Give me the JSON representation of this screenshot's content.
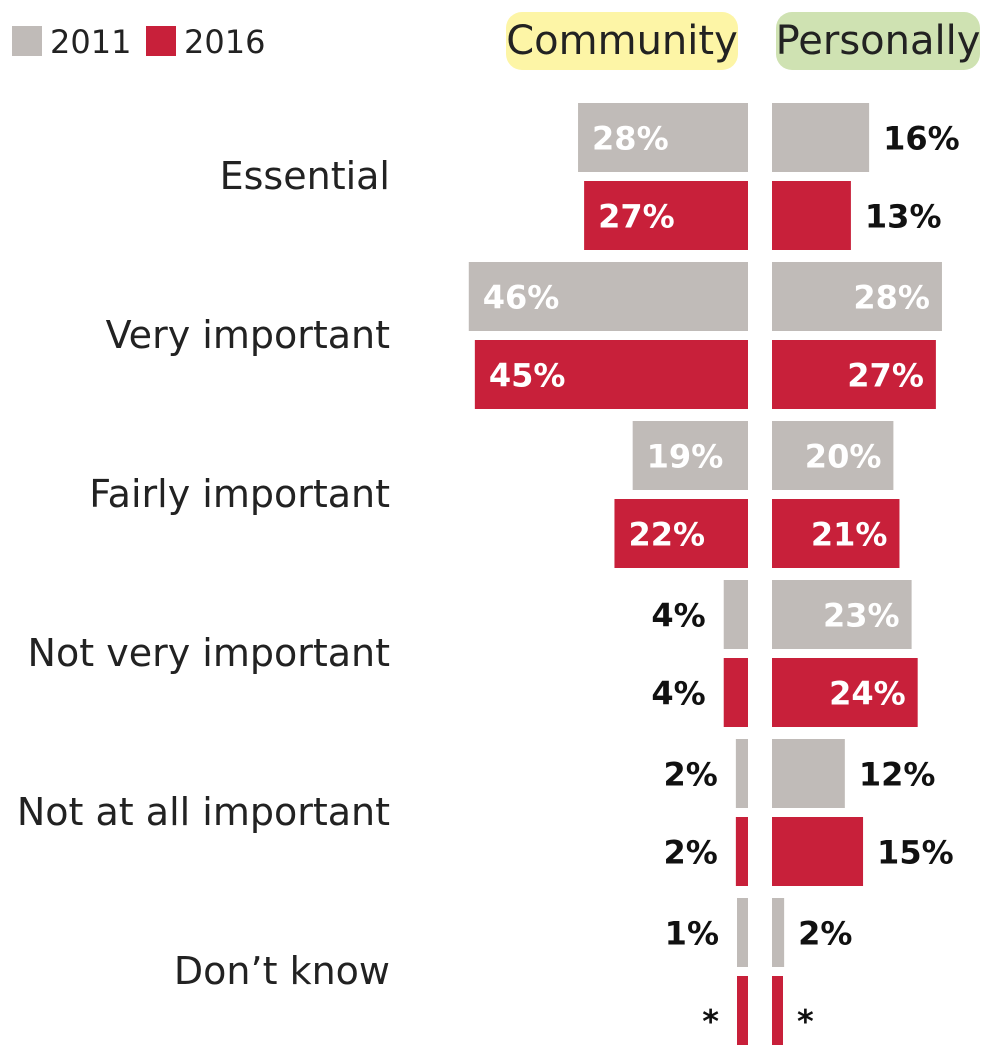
{
  "chart_data": {
    "type": "bar",
    "orientation": "horizontal",
    "layout": "back-to-back",
    "legend": [
      {
        "name": "2011",
        "color": "#c0bbb8"
      },
      {
        "name": "2016",
        "color": "#c8203a"
      }
    ],
    "panels": [
      {
        "title": "Community",
        "highlight": "#fdf5a6"
      },
      {
        "title": "Personally",
        "highlight": "#cfe2b2"
      }
    ],
    "categories": [
      "Essential",
      "Very important",
      "Fairly important",
      "Not very important",
      "Not at all important",
      "Don’t know"
    ],
    "series": [
      {
        "name": "2011",
        "community": [
          28,
          46,
          19,
          4,
          2,
          1
        ],
        "community_labels": [
          "28%",
          "46%",
          "19%",
          "4%",
          "2%",
          "1%"
        ],
        "personally": [
          16,
          28,
          20,
          23,
          12,
          2
        ],
        "personally_labels": [
          "16%",
          "28%",
          "20%",
          "23%",
          "12%",
          "2%"
        ]
      },
      {
        "name": "2016",
        "community": [
          27,
          45,
          22,
          4,
          2,
          0.3
        ],
        "community_labels": [
          "27%",
          "45%",
          "22%",
          "4%",
          "2%",
          "*"
        ],
        "personally": [
          13,
          27,
          21,
          24,
          15,
          0.3
        ],
        "personally_labels": [
          "13%",
          "27%",
          "21%",
          "24%",
          "15%",
          "*"
        ]
      }
    ]
  }
}
